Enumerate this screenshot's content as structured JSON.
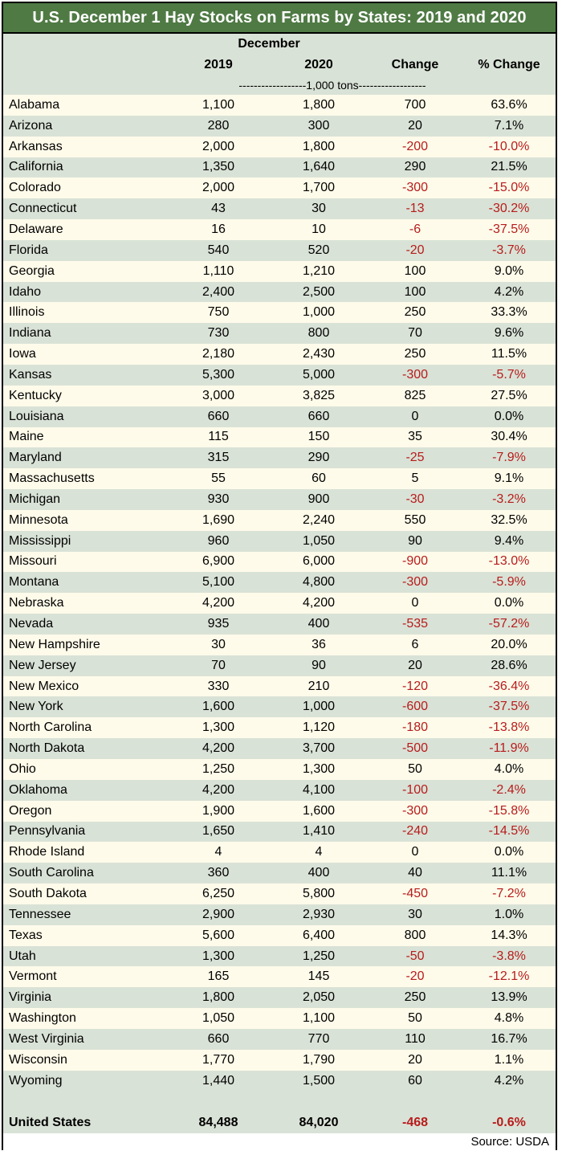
{
  "title": "U.S. December 1 Hay Stocks on Farms by States: 2019 and 2020",
  "header": {
    "group": "December",
    "col_2019": "2019",
    "col_2020": "2020",
    "col_change": "Change",
    "col_pct": "% Change",
    "units": "------------------1,000 tons------------------"
  },
  "rows": [
    {
      "state": "Alabama",
      "y2019": "1,100",
      "y2020": "1,800",
      "change": "700",
      "pct": "63.6%"
    },
    {
      "state": "Arizona",
      "y2019": "280",
      "y2020": "300",
      "change": "20",
      "pct": "7.1%"
    },
    {
      "state": "Arkansas",
      "y2019": "2,000",
      "y2020": "1,800",
      "change": "-200",
      "pct": "-10.0%"
    },
    {
      "state": "California",
      "y2019": "1,350",
      "y2020": "1,640",
      "change": "290",
      "pct": "21.5%"
    },
    {
      "state": "Colorado",
      "y2019": "2,000",
      "y2020": "1,700",
      "change": "-300",
      "pct": "-15.0%"
    },
    {
      "state": "Connecticut",
      "y2019": "43",
      "y2020": "30",
      "change": "-13",
      "pct": "-30.2%"
    },
    {
      "state": "Delaware",
      "y2019": "16",
      "y2020": "10",
      "change": "-6",
      "pct": "-37.5%"
    },
    {
      "state": "Florida",
      "y2019": "540",
      "y2020": "520",
      "change": "-20",
      "pct": "-3.7%"
    },
    {
      "state": "Georgia",
      "y2019": "1,110",
      "y2020": "1,210",
      "change": "100",
      "pct": "9.0%"
    },
    {
      "state": "Idaho",
      "y2019": "2,400",
      "y2020": "2,500",
      "change": "100",
      "pct": "4.2%"
    },
    {
      "state": "Illinois",
      "y2019": "750",
      "y2020": "1,000",
      "change": "250",
      "pct": "33.3%"
    },
    {
      "state": "Indiana",
      "y2019": "730",
      "y2020": "800",
      "change": "70",
      "pct": "9.6%"
    },
    {
      "state": "Iowa",
      "y2019": "2,180",
      "y2020": "2,430",
      "change": "250",
      "pct": "11.5%"
    },
    {
      "state": "Kansas",
      "y2019": "5,300",
      "y2020": "5,000",
      "change": "-300",
      "pct": "-5.7%"
    },
    {
      "state": "Kentucky",
      "y2019": "3,000",
      "y2020": "3,825",
      "change": "825",
      "pct": "27.5%"
    },
    {
      "state": "Louisiana",
      "y2019": "660",
      "y2020": "660",
      "change": "0",
      "pct": "0.0%"
    },
    {
      "state": "Maine",
      "y2019": "115",
      "y2020": "150",
      "change": "35",
      "pct": "30.4%"
    },
    {
      "state": "Maryland",
      "y2019": "315",
      "y2020": "290",
      "change": "-25",
      "pct": "-7.9%"
    },
    {
      "state": "Massachusetts",
      "y2019": "55",
      "y2020": "60",
      "change": "5",
      "pct": "9.1%"
    },
    {
      "state": "Michigan",
      "y2019": "930",
      "y2020": "900",
      "change": "-30",
      "pct": "-3.2%"
    },
    {
      "state": "Minnesota",
      "y2019": "1,690",
      "y2020": "2,240",
      "change": "550",
      "pct": "32.5%"
    },
    {
      "state": "Mississippi",
      "y2019": "960",
      "y2020": "1,050",
      "change": "90",
      "pct": "9.4%"
    },
    {
      "state": "Missouri",
      "y2019": "6,900",
      "y2020": "6,000",
      "change": "-900",
      "pct": "-13.0%"
    },
    {
      "state": "Montana",
      "y2019": "5,100",
      "y2020": "4,800",
      "change": "-300",
      "pct": "-5.9%"
    },
    {
      "state": "Nebraska",
      "y2019": "4,200",
      "y2020": "4,200",
      "change": "0",
      "pct": "0.0%"
    },
    {
      "state": "Nevada",
      "y2019": "935",
      "y2020": "400",
      "change": "-535",
      "pct": "-57.2%"
    },
    {
      "state": "New Hampshire",
      "y2019": "30",
      "y2020": "36",
      "change": "6",
      "pct": "20.0%"
    },
    {
      "state": "New Jersey",
      "y2019": "70",
      "y2020": "90",
      "change": "20",
      "pct": "28.6%"
    },
    {
      "state": "New Mexico",
      "y2019": "330",
      "y2020": "210",
      "change": "-120",
      "pct": "-36.4%"
    },
    {
      "state": "New York",
      "y2019": "1,600",
      "y2020": "1,000",
      "change": "-600",
      "pct": "-37.5%"
    },
    {
      "state": "North Carolina",
      "y2019": "1,300",
      "y2020": "1,120",
      "change": "-180",
      "pct": "-13.8%"
    },
    {
      "state": "North Dakota",
      "y2019": "4,200",
      "y2020": "3,700",
      "change": "-500",
      "pct": "-11.9%"
    },
    {
      "state": "Ohio",
      "y2019": "1,250",
      "y2020": "1,300",
      "change": "50",
      "pct": "4.0%"
    },
    {
      "state": "Oklahoma",
      "y2019": "4,200",
      "y2020": "4,100",
      "change": "-100",
      "pct": "-2.4%"
    },
    {
      "state": "Oregon",
      "y2019": "1,900",
      "y2020": "1,600",
      "change": "-300",
      "pct": "-15.8%"
    },
    {
      "state": "Pennsylvania",
      "y2019": "1,650",
      "y2020": "1,410",
      "change": "-240",
      "pct": "-14.5%"
    },
    {
      "state": "Rhode Island",
      "y2019": "4",
      "y2020": "4",
      "change": "0",
      "pct": "0.0%"
    },
    {
      "state": "South Carolina",
      "y2019": "360",
      "y2020": "400",
      "change": "40",
      "pct": "11.1%"
    },
    {
      "state": "South Dakota",
      "y2019": "6,250",
      "y2020": "5,800",
      "change": "-450",
      "pct": "-7.2%"
    },
    {
      "state": "Tennessee",
      "y2019": "2,900",
      "y2020": "2,930",
      "change": "30",
      "pct": "1.0%"
    },
    {
      "state": "Texas",
      "y2019": "5,600",
      "y2020": "6,400",
      "change": "800",
      "pct": "14.3%"
    },
    {
      "state": "Utah",
      "y2019": "1,300",
      "y2020": "1,250",
      "change": "-50",
      "pct": "-3.8%"
    },
    {
      "state": "Vermont",
      "y2019": "165",
      "y2020": "145",
      "change": "-20",
      "pct": "-12.1%"
    },
    {
      "state": "Virginia",
      "y2019": "1,800",
      "y2020": "2,050",
      "change": "250",
      "pct": "13.9%"
    },
    {
      "state": "Washington",
      "y2019": "1,050",
      "y2020": "1,100",
      "change": "50",
      "pct": "4.8%"
    },
    {
      "state": "West Virginia",
      "y2019": "660",
      "y2020": "770",
      "change": "110",
      "pct": "16.7%"
    },
    {
      "state": "Wisconsin",
      "y2019": "1,770",
      "y2020": "1,790",
      "change": "20",
      "pct": "1.1%"
    },
    {
      "state": "Wyoming",
      "y2019": "1,440",
      "y2020": "1,500",
      "change": "60",
      "pct": "4.2%"
    }
  ],
  "total": {
    "state": "United States",
    "y2019": "84,488",
    "y2020": "84,020",
    "change": "-468",
    "pct": "-0.6%"
  },
  "source": "Source: USDA",
  "colors": {
    "title_bg": "#4f7a44",
    "band_light": "#fffbea",
    "band_dark": "#d9e2d6",
    "negative": "#b71c1c"
  }
}
